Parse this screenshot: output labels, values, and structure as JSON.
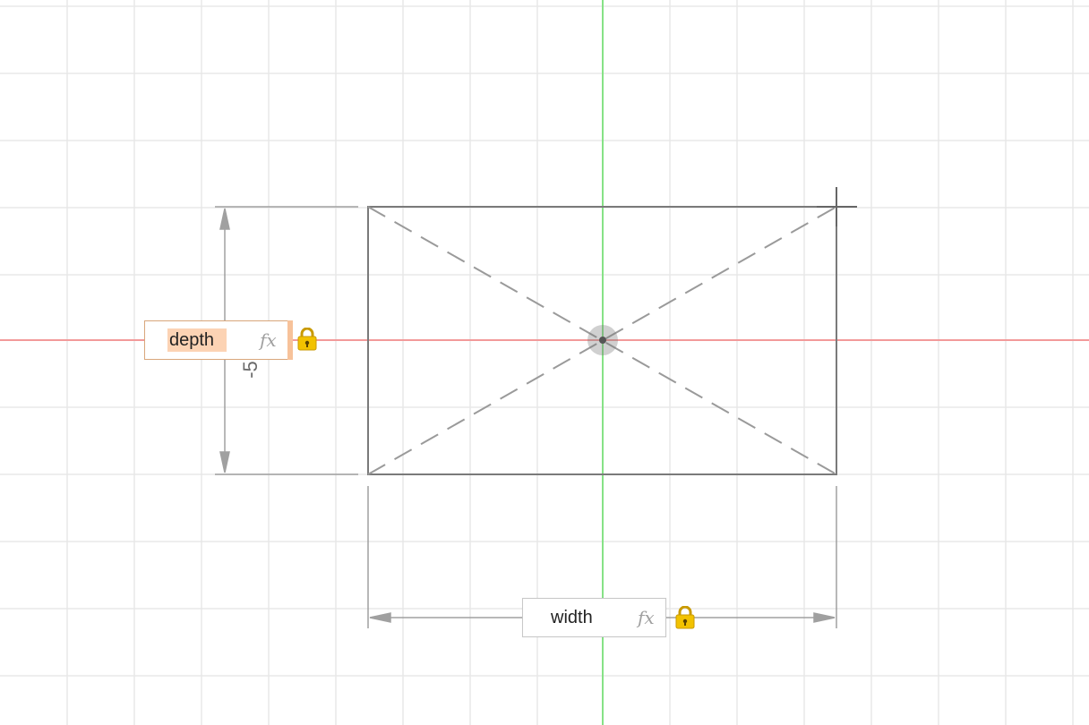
{
  "sketch": {
    "depth_dimension": {
      "value": "depth",
      "fx_label": "fx",
      "lock_icon": "lock-icon",
      "displayed_value": "-5"
    },
    "width_dimension": {
      "value": "width",
      "fx_label": "fx",
      "lock_icon": "lock-icon"
    }
  },
  "colors": {
    "grid": "#e6e6e6",
    "x_axis": "#f08080",
    "y_axis": "#7ee07e",
    "sketch_line": "#7a7a7a",
    "dimension_line": "#9a9a9a",
    "highlight": "#fcd3b4",
    "lock": "#e8b400"
  }
}
